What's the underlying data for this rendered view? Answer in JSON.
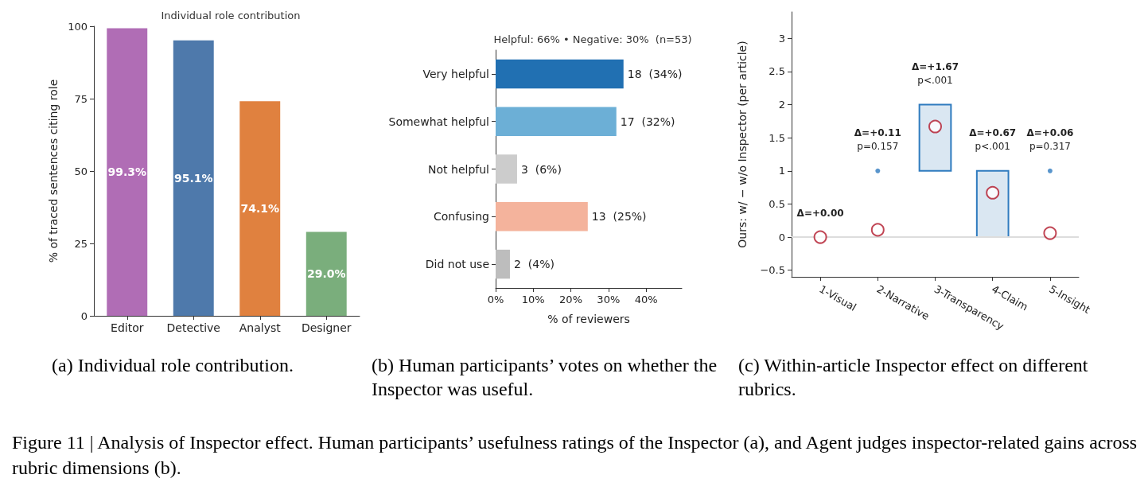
{
  "chart_data": [
    {
      "type": "bar",
      "title": "Individual role contribution",
      "ylabel": "% of traced sentences citing role",
      "categories": [
        "Editor",
        "Detective",
        "Analyst",
        "Designer"
      ],
      "values": [
        99.3,
        95.1,
        74.1,
        29.0
      ],
      "colors": [
        "#b06db5",
        "#4e79ab",
        "#e0813f",
        "#7aae7c"
      ],
      "value_labels": [
        "99.3%",
        "95.1%",
        "74.1%",
        "29.0%"
      ],
      "ylim": [
        0,
        100
      ],
      "yticks": [
        0,
        25,
        50,
        75,
        100
      ],
      "grid": false,
      "annotations": [
        "(a) Individual role contribution.",
        "Figure 11 | Analysis of Inspector effect. Human participants’ usefulness ratings of the Inspector (a), and Agent judges inspector-related gains across rubric dimensions (b)."
      ]
    },
    {
      "type": "bar",
      "orientation": "horizontal",
      "title": "Helpful: 66% • Negative: 30%  (n=53)",
      "xlabel": "% of reviewers",
      "categories": [
        "Very helpful",
        "Somewhat helpful",
        "Not helpful",
        "Confusing",
        "Did not use"
      ],
      "values": [
        34.0,
        32.1,
        5.7,
        24.5,
        3.8
      ],
      "colors": [
        "#2170b2",
        "#6cafd6",
        "#cccccc",
        "#f4b39c",
        "#bdbdbd"
      ],
      "value_labels": [
        "18  (34%)",
        "17  (32%)",
        "3  (6%)",
        "13  (25%)",
        "2  (4%)"
      ],
      "xlim": [
        0,
        49.5
      ],
      "xticks": [
        {
          "value": 0,
          "label": "0%"
        },
        {
          "value": 10,
          "label": "10%"
        },
        {
          "value": 20,
          "label": "20%"
        },
        {
          "value": 30,
          "label": "30%"
        },
        {
          "value": 40,
          "label": "40%"
        }
      ],
      "grid": false,
      "annotations": [
        "(b) Human participants’ votes on whether the Inspector was useful."
      ]
    },
    {
      "type": "box",
      "ylabel": "Ours: w/ − w/o Inspector (per article)",
      "categories": [
        "1-Visual",
        "2-Narrative",
        "3-Transparency",
        "4-Claim",
        "5-Insight"
      ],
      "color": "#2f7bbf",
      "boxes": [
        {
          "low": 0,
          "q1": 0,
          "median": 0,
          "q3": 0,
          "high": 0,
          "mean": 0
        },
        {
          "low": 0,
          "q1": 0,
          "median": 0,
          "q3": 0,
          "high": 0,
          "mean": 0.11,
          "outliers": [
            1
          ]
        },
        {
          "low": 1,
          "q1": 1,
          "median": 2,
          "q3": 2,
          "high": 2,
          "mean": 1.67
        },
        {
          "low": 0,
          "q1": 0,
          "median": 1,
          "q3": 1,
          "high": 1,
          "mean": 0.67
        },
        {
          "low": 0,
          "q1": 0,
          "median": 0,
          "q3": 0,
          "high": 0,
          "mean": 0.06,
          "outliers": [
            1
          ]
        }
      ],
      "ylim": [
        -0.6,
        3.4
      ],
      "yticks": [
        {
          "value": -0.5,
          "label": "−0.5"
        },
        0,
        0.5,
        1,
        1.5,
        2,
        2.5,
        3
      ],
      "grid": false,
      "ref_lines": [
        {
          "axis": "y",
          "value": 0,
          "color": "#dddddd"
        }
      ],
      "annotations": [
        "(c) Within-article Inspector effect on different rubrics.",
        "Δ=+0.00",
        "Δ=+0.11\np=0.157",
        "Δ=+1.67\np<.001",
        "Δ=+0.67\np<.001",
        "Δ=+0.06\np=0.317"
      ]
    }
  ]
}
